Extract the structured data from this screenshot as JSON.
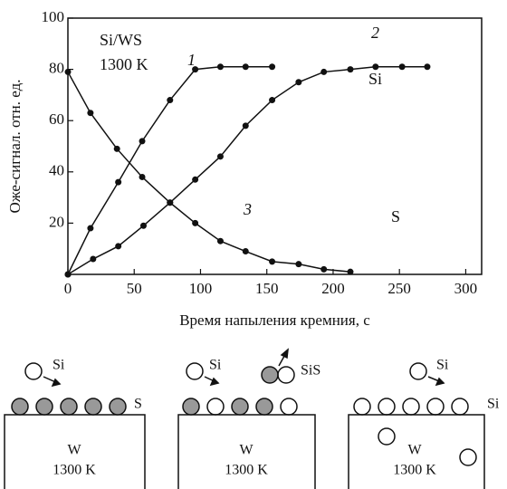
{
  "chart_data": {
    "type": "line",
    "y_label": "Оже-сигнал. отн. ед.",
    "x_label": "Время напыления кремния, с",
    "xlim": [
      0,
      312
    ],
    "ylim": [
      0,
      100
    ],
    "xticks": [
      0,
      50,
      100,
      150,
      200,
      250,
      300
    ],
    "yticks": [
      20,
      40,
      60,
      80,
      100
    ],
    "annotations": [
      "Si/WS",
      "1300 K",
      "1",
      "2",
      "3",
      "Si",
      "S"
    ],
    "series": [
      {
        "color": "#111111",
        "x": [
          0,
          17,
          38,
          56,
          77,
          96,
          115,
          134,
          154
        ],
        "values": [
          0,
          18,
          36,
          52,
          68,
          80,
          81,
          81,
          81
        ]
      },
      {
        "color": "#111111",
        "x": [
          0,
          19,
          38,
          57,
          77,
          96,
          115,
          134,
          154,
          174,
          193,
          213,
          232,
          252,
          271
        ],
        "values": [
          0,
          6,
          11,
          19,
          28,
          37,
          46,
          58,
          68,
          75,
          79,
          80,
          81,
          81,
          81
        ]
      },
      {
        "color": "#111111",
        "x": [
          0,
          17,
          37,
          56,
          77,
          96,
          115,
          134,
          154,
          174,
          193,
          213
        ],
        "values": [
          79,
          63,
          49,
          38,
          28,
          20,
          13,
          9,
          5,
          4,
          2,
          1
        ]
      }
    ]
  },
  "diagram": {
    "panels": [
      {
        "incoming": "Si",
        "surface": "S",
        "substrate": "W",
        "temperature": "1300 K"
      },
      {
        "incoming": "Si",
        "outgoing": "SiS",
        "substrate": "W",
        "temperature": "1300 K"
      },
      {
        "incoming": "Si",
        "surface": "Si",
        "substrate": "W",
        "temperature": "1300 K"
      }
    ]
  }
}
